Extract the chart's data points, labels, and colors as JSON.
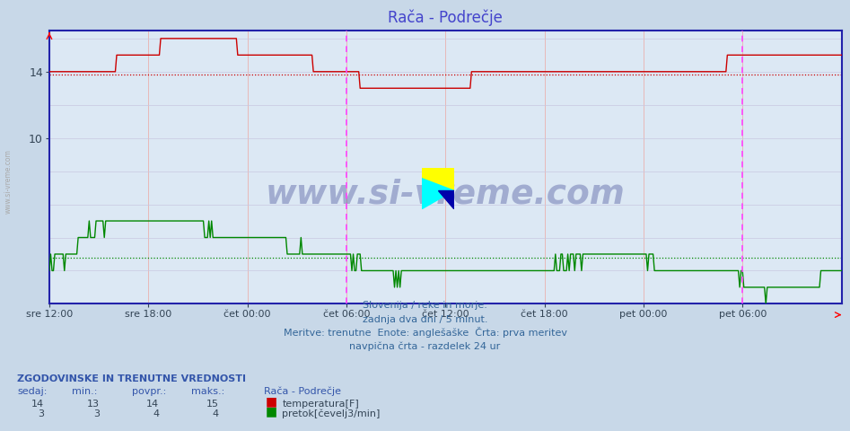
{
  "title": "Rača - Podrečje",
  "title_color": "#4444cc",
  "bg_color": "#c8d8e8",
  "plot_bg_color": "#dce8f4",
  "xlabel": "",
  "ylabel": "",
  "ylim": [
    0,
    16.5
  ],
  "ytick_vals": [
    10,
    14
  ],
  "ytick_labels": [
    "10",
    "14"
  ],
  "xtick_labels": [
    "sre 12:00",
    "sre 18:00",
    "čet 00:00",
    "čet 06:00",
    "čet 12:00",
    "čet 18:00",
    "pet 00:00",
    "pet 06:00"
  ],
  "n_points": 577,
  "temp_color": "#cc0000",
  "flow_color": "#008800",
  "temp_avg_line": 13.85,
  "flow_avg_line": 2.8,
  "vertical_line_x": 216,
  "vertical_line_color": "#ff44ff",
  "watermark_text": "www.si-vreme.com",
  "watermark_color": "#1a237e",
  "watermark_alpha": 0.3,
  "footer_line1": "Slovenija / reke in morje.",
  "footer_line2": "zadnja dva dni / 5 minut.",
  "footer_line3": "Meritve: trenutne  Enote: anglešaške  Črta: prva meritev",
  "footer_line4": "navpična črta - razdelek 24 ur",
  "footer_color": "#336699",
  "stats_header": "ZGODOVINSKE IN TRENUTNE VREDNOSTI",
  "stats_col1": "sedaj:",
  "stats_col2": "min.:",
  "stats_col3": "povpr.:",
  "stats_col4": "maks.:",
  "stats_col5": "Rača - Podrečje",
  "temp_row": [
    "14",
    "13",
    "14",
    "15"
  ],
  "flow_row": [
    "3",
    "3",
    "4",
    "4"
  ],
  "temp_legend": "temperatura[F]",
  "flow_legend": "pretok[čevelj3/min]"
}
